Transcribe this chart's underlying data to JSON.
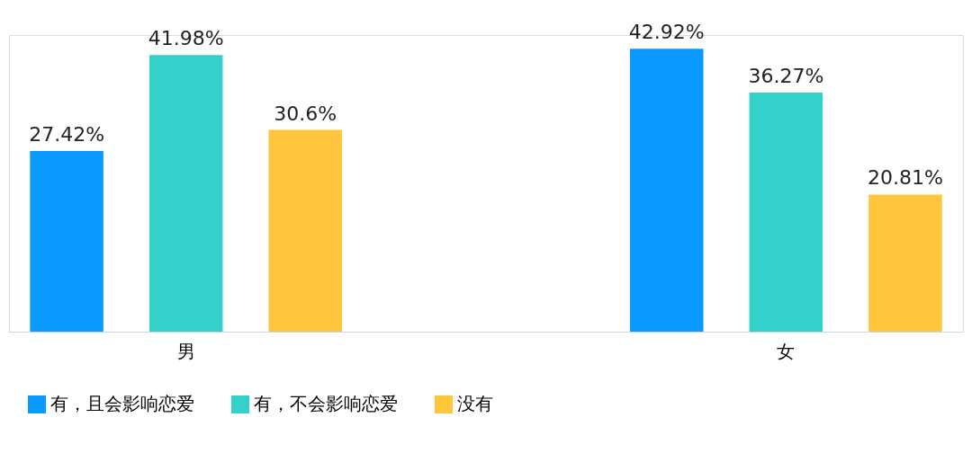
{
  "chart_data": {
    "type": "bar",
    "categories": [
      "男",
      "女"
    ],
    "series": [
      {
        "name": "有，且会影响恋爱",
        "color": "#0a99ff",
        "values": [
          27.42,
          42.92
        ],
        "value_labels": [
          "27.42%",
          "42.92%"
        ]
      },
      {
        "name": "有，不会影响恋爱",
        "color": "#33d1c9",
        "values": [
          41.98,
          36.27
        ],
        "value_labels": [
          "41.98%",
          "36.27%"
        ]
      },
      {
        "name": "没有",
        "color": "#ffc53d",
        "values": [
          30.6,
          20.81
        ],
        "value_labels": [
          "30.6%",
          "20.81%"
        ]
      }
    ],
    "legend": "bottom",
    "grid": false
  }
}
